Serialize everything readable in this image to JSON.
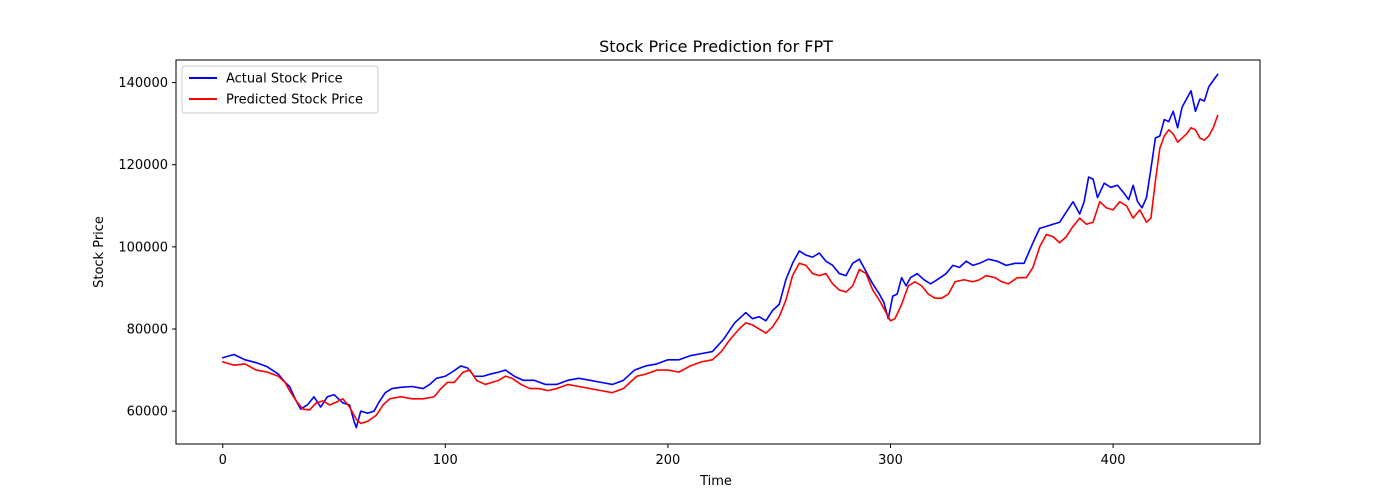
{
  "chart_data": {
    "type": "line",
    "title": "Stock Price Prediction for FPT",
    "xlabel": "Time",
    "ylabel": "Stock Price",
    "xlim": [
      -21,
      466
    ],
    "ylim": [
      52000,
      145500
    ],
    "xticks": [
      0,
      100,
      200,
      300,
      400
    ],
    "xtick_labels": [
      "0",
      "100",
      "200",
      "300",
      "400"
    ],
    "yticks": [
      60000,
      80000,
      100000,
      120000,
      140000
    ],
    "ytick_labels": [
      "60000",
      "80000",
      "100000",
      "120000",
      "140000"
    ],
    "grid": false,
    "legend_position": "top-left",
    "series": [
      {
        "name": "Actual Stock Price",
        "color": "#0000ff",
        "points": [
          [
            0,
            73000
          ],
          [
            5,
            73800
          ],
          [
            10,
            72500
          ],
          [
            15,
            71800
          ],
          [
            20,
            70800
          ],
          [
            25,
            69000
          ],
          [
            28,
            67000
          ],
          [
            30,
            66000
          ],
          [
            33,
            62500
          ],
          [
            35,
            60500
          ],
          [
            38,
            61500
          ],
          [
            41,
            63500
          ],
          [
            44,
            61000
          ],
          [
            47,
            63500
          ],
          [
            50,
            64000
          ],
          [
            54,
            62000
          ],
          [
            57,
            61500
          ],
          [
            59,
            57500
          ],
          [
            60,
            56000
          ],
          [
            62,
            60000
          ],
          [
            65,
            59500
          ],
          [
            68,
            60000
          ],
          [
            70,
            62000
          ],
          [
            73,
            64500
          ],
          [
            76,
            65500
          ],
          [
            80,
            65800
          ],
          [
            85,
            66000
          ],
          [
            90,
            65500
          ],
          [
            93,
            66500
          ],
          [
            96,
            68000
          ],
          [
            100,
            68500
          ],
          [
            103,
            69500
          ],
          [
            107,
            71000
          ],
          [
            110,
            70500
          ],
          [
            113,
            68500
          ],
          [
            117,
            68500
          ],
          [
            120,
            69000
          ],
          [
            124,
            69500
          ],
          [
            127,
            70000
          ],
          [
            131,
            68500
          ],
          [
            135,
            67500
          ],
          [
            140,
            67500
          ],
          [
            145,
            66500
          ],
          [
            150,
            66500
          ],
          [
            155,
            67500
          ],
          [
            160,
            68000
          ],
          [
            165,
            67500
          ],
          [
            170,
            67000
          ],
          [
            175,
            66500
          ],
          [
            180,
            67500
          ],
          [
            185,
            70000
          ],
          [
            190,
            71000
          ],
          [
            195,
            71500
          ],
          [
            200,
            72500
          ],
          [
            205,
            72500
          ],
          [
            210,
            73500
          ],
          [
            215,
            74000
          ],
          [
            220,
            74500
          ],
          [
            225,
            77500
          ],
          [
            230,
            81500
          ],
          [
            235,
            84000
          ],
          [
            238,
            82500
          ],
          [
            241,
            83000
          ],
          [
            244,
            82000
          ],
          [
            247,
            84500
          ],
          [
            250,
            86000
          ],
          [
            253,
            92000
          ],
          [
            256,
            96000
          ],
          [
            259,
            99000
          ],
          [
            262,
            98000
          ],
          [
            265,
            97500
          ],
          [
            268,
            98500
          ],
          [
            271,
            96500
          ],
          [
            274,
            95500
          ],
          [
            277,
            93500
          ],
          [
            280,
            93000
          ],
          [
            283,
            96000
          ],
          [
            286,
            97000
          ],
          [
            289,
            94000
          ],
          [
            292,
            91000
          ],
          [
            295,
            88500
          ],
          [
            297,
            86500
          ],
          [
            299,
            82500
          ],
          [
            301,
            88000
          ],
          [
            303,
            88500
          ],
          [
            305,
            92500
          ],
          [
            307,
            90500
          ],
          [
            309,
            92500
          ],
          [
            312,
            93500
          ],
          [
            315,
            92000
          ],
          [
            318,
            91000
          ],
          [
            321,
            92000
          ],
          [
            325,
            93500
          ],
          [
            328,
            95500
          ],
          [
            331,
            95000
          ],
          [
            334,
            96500
          ],
          [
            337,
            95500
          ],
          [
            340,
            96000
          ],
          [
            344,
            97000
          ],
          [
            348,
            96500
          ],
          [
            352,
            95500
          ],
          [
            356,
            96000
          ],
          [
            360,
            96000
          ],
          [
            364,
            101000
          ],
          [
            367,
            104500
          ],
          [
            370,
            105000
          ],
          [
            373,
            105500
          ],
          [
            376,
            106000
          ],
          [
            379,
            108500
          ],
          [
            382,
            111000
          ],
          [
            385,
            108000
          ],
          [
            387,
            111000
          ],
          [
            389,
            117000
          ],
          [
            391,
            116500
          ],
          [
            393,
            112000
          ],
          [
            396,
            115500
          ],
          [
            399,
            114500
          ],
          [
            402,
            115000
          ],
          [
            405,
            113000
          ],
          [
            407,
            111500
          ],
          [
            409,
            115000
          ],
          [
            411,
            111000
          ],
          [
            413,
            109500
          ],
          [
            415,
            112000
          ],
          [
            417,
            119000
          ],
          [
            419,
            126500
          ],
          [
            421,
            127000
          ],
          [
            423,
            131000
          ],
          [
            425,
            130500
          ],
          [
            427,
            133000
          ],
          [
            429,
            129000
          ],
          [
            431,
            134000
          ],
          [
            433,
            136000
          ],
          [
            435,
            138000
          ],
          [
            437,
            133000
          ],
          [
            439,
            136000
          ],
          [
            441,
            135500
          ],
          [
            443,
            139000
          ],
          [
            445,
            140500
          ],
          [
            447,
            142000
          ]
        ]
      },
      {
        "name": "Predicted Stock Price",
        "color": "#ff0000",
        "points": [
          [
            0,
            72000
          ],
          [
            5,
            71200
          ],
          [
            10,
            71500
          ],
          [
            15,
            70000
          ],
          [
            20,
            69500
          ],
          [
            25,
            68500
          ],
          [
            28,
            67000
          ],
          [
            30,
            65000
          ],
          [
            33,
            62500
          ],
          [
            36,
            60500
          ],
          [
            39,
            60300
          ],
          [
            42,
            62000
          ],
          [
            45,
            62500
          ],
          [
            48,
            61500
          ],
          [
            51,
            62200
          ],
          [
            54,
            63000
          ],
          [
            57,
            61000
          ],
          [
            60,
            58000
          ],
          [
            62,
            57000
          ],
          [
            65,
            57500
          ],
          [
            69,
            59000
          ],
          [
            72,
            61500
          ],
          [
            75,
            63000
          ],
          [
            80,
            63500
          ],
          [
            85,
            63000
          ],
          [
            90,
            63000
          ],
          [
            95,
            63500
          ],
          [
            98,
            65500
          ],
          [
            101,
            67000
          ],
          [
            104,
            67000
          ],
          [
            108,
            69500
          ],
          [
            111,
            70000
          ],
          [
            114,
            67500
          ],
          [
            118,
            66500
          ],
          [
            121,
            67000
          ],
          [
            124,
            67500
          ],
          [
            127,
            68500
          ],
          [
            130,
            68000
          ],
          [
            134,
            66500
          ],
          [
            138,
            65500
          ],
          [
            142,
            65500
          ],
          [
            146,
            65000
          ],
          [
            150,
            65500
          ],
          [
            155,
            66500
          ],
          [
            160,
            66000
          ],
          [
            165,
            65500
          ],
          [
            170,
            65000
          ],
          [
            175,
            64500
          ],
          [
            180,
            65500
          ],
          [
            183,
            67000
          ],
          [
            186,
            68500
          ],
          [
            190,
            69000
          ],
          [
            195,
            70000
          ],
          [
            200,
            70000
          ],
          [
            205,
            69500
          ],
          [
            210,
            71000
          ],
          [
            215,
            72000
          ],
          [
            220,
            72500
          ],
          [
            224,
            74500
          ],
          [
            228,
            77500
          ],
          [
            232,
            80000
          ],
          [
            235,
            81500
          ],
          [
            238,
            81000
          ],
          [
            241,
            80000
          ],
          [
            244,
            79000
          ],
          [
            247,
            80500
          ],
          [
            250,
            83000
          ],
          [
            253,
            87000
          ],
          [
            256,
            93000
          ],
          [
            259,
            96000
          ],
          [
            262,
            95500
          ],
          [
            265,
            93500
          ],
          [
            268,
            93000
          ],
          [
            271,
            93500
          ],
          [
            274,
            91000
          ],
          [
            277,
            89500
          ],
          [
            280,
            89000
          ],
          [
            283,
            90500
          ],
          [
            286,
            94500
          ],
          [
            289,
            93500
          ],
          [
            292,
            89500
          ],
          [
            295,
            87000
          ],
          [
            297,
            85000
          ],
          [
            300,
            82000
          ],
          [
            302,
            82500
          ],
          [
            305,
            86000
          ],
          [
            308,
            90500
          ],
          [
            311,
            91500
          ],
          [
            314,
            90500
          ],
          [
            317,
            88500
          ],
          [
            320,
            87500
          ],
          [
            323,
            87500
          ],
          [
            326,
            88500
          ],
          [
            329,
            91500
          ],
          [
            333,
            92000
          ],
          [
            337,
            91500
          ],
          [
            340,
            92000
          ],
          [
            343,
            93000
          ],
          [
            347,
            92500
          ],
          [
            350,
            91500
          ],
          [
            353,
            91000
          ],
          [
            357,
            92500
          ],
          [
            361,
            92500
          ],
          [
            364,
            95000
          ],
          [
            367,
            100000
          ],
          [
            370,
            103000
          ],
          [
            373,
            102500
          ],
          [
            376,
            101000
          ],
          [
            379,
            102500
          ],
          [
            382,
            105000
          ],
          [
            385,
            107000
          ],
          [
            388,
            105500
          ],
          [
            391,
            106000
          ],
          [
            394,
            111000
          ],
          [
            397,
            109500
          ],
          [
            400,
            109000
          ],
          [
            403,
            111000
          ],
          [
            406,
            110000
          ],
          [
            409,
            107000
          ],
          [
            412,
            109000
          ],
          [
            415,
            106000
          ],
          [
            417,
            107000
          ],
          [
            419,
            116000
          ],
          [
            421,
            124000
          ],
          [
            423,
            127000
          ],
          [
            425,
            128500
          ],
          [
            427,
            127500
          ],
          [
            429,
            125500
          ],
          [
            431,
            126500
          ],
          [
            433,
            127500
          ],
          [
            435,
            129000
          ],
          [
            437,
            128500
          ],
          [
            439,
            126500
          ],
          [
            441,
            126000
          ],
          [
            443,
            127000
          ],
          [
            445,
            129000
          ],
          [
            447,
            132000
          ]
        ]
      }
    ]
  }
}
